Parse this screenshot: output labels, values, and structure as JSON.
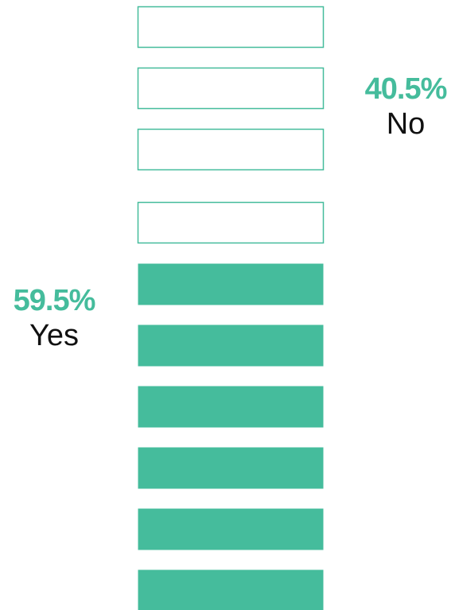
{
  "chart_data": {
    "type": "bar",
    "categories": [
      "No",
      "Yes"
    ],
    "values": [
      40.5,
      59.5
    ],
    "value_labels": [
      "40.5%",
      "59.5%"
    ],
    "units": 10,
    "filled_units": 6,
    "colors": {
      "filled": "#45bc9c",
      "outline": "#45bc9c",
      "empty_fill": "#ffffff"
    },
    "grid": false,
    "legend": "none"
  }
}
